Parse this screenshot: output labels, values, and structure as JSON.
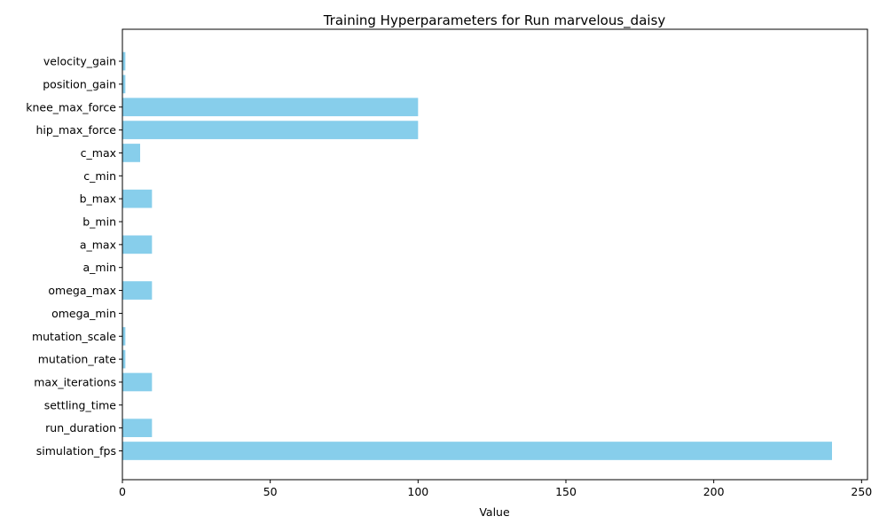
{
  "chart_data": {
    "type": "bar",
    "orientation": "horizontal",
    "title": "Training Hyperparameters for Run marvelous_daisy",
    "xlabel": "Value",
    "ylabel": "",
    "xlim": [
      0,
      252
    ],
    "xticks": [
      0,
      50,
      100,
      150,
      200,
      250
    ],
    "grid": false,
    "bar_color": "#87CEEB",
    "categories": [
      "simulation_fps",
      "run_duration",
      "settling_time",
      "max_iterations",
      "mutation_rate",
      "mutation_scale",
      "omega_min",
      "omega_max",
      "a_min",
      "a_max",
      "b_min",
      "b_max",
      "c_min",
      "c_max",
      "hip_max_force",
      "knee_max_force",
      "position_gain",
      "velocity_gain"
    ],
    "values": [
      240,
      10,
      0,
      10,
      1,
      1,
      0,
      10,
      0,
      10,
      0,
      10,
      0,
      6,
      100,
      100,
      1,
      1
    ]
  }
}
